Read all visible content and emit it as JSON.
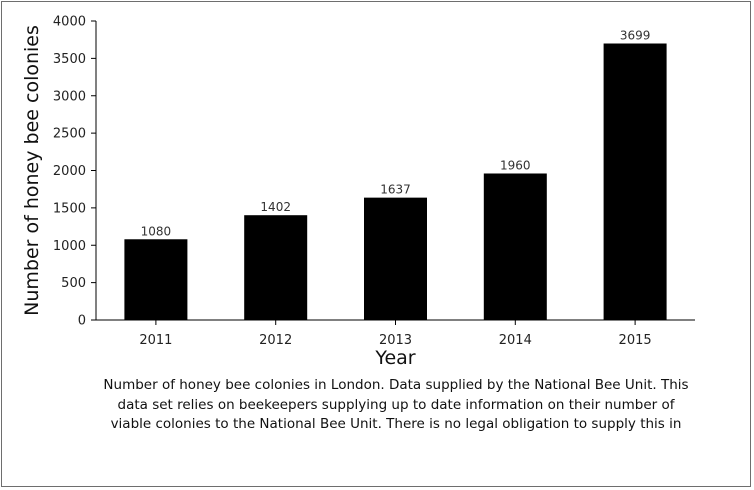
{
  "chart_data": {
    "type": "bar",
    "categories": [
      "2011",
      "2012",
      "2013",
      "2014",
      "2015"
    ],
    "values": [
      1080,
      1402,
      1637,
      1960,
      3699
    ],
    "data_labels": [
      "1080",
      "1402",
      "1637",
      "1960",
      "3699"
    ],
    "xlabel": "Year",
    "ylabel": "Number of honey bee colonies",
    "ylim": [
      0,
      4000
    ],
    "yticks": [
      0,
      500,
      1000,
      1500,
      2000,
      2500,
      3000,
      3500,
      4000
    ],
    "bar_color": "#000000",
    "grid": false,
    "legend": "none"
  },
  "caption": "Number of honey bee colonies in London. Data supplied by the National Bee Unit. This data set relies on beekeepers supplying up to date information on their number of viable colonies to the National Bee Unit. There is no legal obligation to supply this in"
}
